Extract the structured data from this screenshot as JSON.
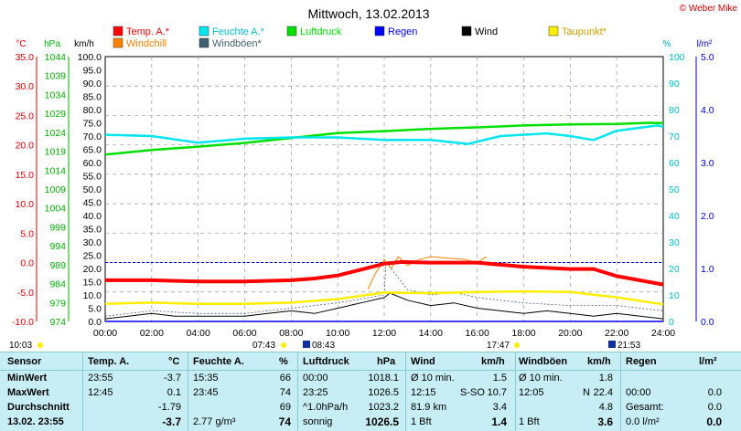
{
  "title": "Mittwoch, 13.02.2013",
  "copyright": "© Weber Mike",
  "legend": [
    {
      "label": "Temp. A.*",
      "color": "#ff0000"
    },
    {
      "label": "Feuchte A.*",
      "color": "#00e5ee"
    },
    {
      "label": "Luftdruck",
      "color": "#00e000"
    },
    {
      "label": "Regen",
      "color": "#0000ff"
    },
    {
      "label": "Wind",
      "color": "#000000"
    },
    {
      "label": "Taupunkt*",
      "color": "#ffee00"
    },
    {
      "label": "Windchill",
      "color": "#ff7f00"
    },
    {
      "label": "Windböen*",
      "color": "#406070"
    }
  ],
  "axis_units": {
    "celsius": "°C",
    "hpa": "hPa",
    "kmh": "km/h",
    "percent": "%",
    "rain": "l/m²"
  },
  "sun_events": {
    "sunrise_label": "07:43",
    "sunset_label": "17:47",
    "moonrise_label": "08:43",
    "moonset_label": "21:53",
    "left_time": "10:03"
  },
  "chart_data": {
    "type": "line",
    "x_range": [
      "00:00",
      "24:00"
    ],
    "x_ticks": [
      "00:00",
      "02:00",
      "04:00",
      "06:00",
      "08:00",
      "10:00",
      "12:00",
      "14:00",
      "16:00",
      "18:00",
      "20:00",
      "22:00",
      "24:00"
    ],
    "axes": {
      "temp_c": {
        "range": [
          -10,
          35
        ],
        "ticks": [
          "35.0",
          "30.0",
          "25.0",
          "20.0",
          "15.0",
          "10.0",
          "5.0",
          "0.0",
          "-5.0",
          "-10.0"
        ]
      },
      "pressure_hpa": {
        "range": [
          974,
          1044
        ],
        "ticks": [
          "1044",
          "1039",
          "1034",
          "1029",
          "1024",
          "1019",
          "1014",
          "1009",
          "1004",
          "999",
          "994",
          "989",
          "984",
          "979",
          "974"
        ]
      },
      "wind_kmh": {
        "range": [
          0,
          100
        ],
        "ticks": [
          "100.0",
          "95.0",
          "90.0",
          "85.0",
          "80.0",
          "75.0",
          "70.0",
          "65.0",
          "60.0",
          "55.0",
          "50.0",
          "45.0",
          "40.0",
          "35.0",
          "30.0",
          "25.0",
          "20.0",
          "15.0",
          "10.0",
          "5.0",
          "0.0"
        ]
      },
      "humidity_pct": {
        "range": [
          0,
          100
        ],
        "ticks": [
          "100",
          "90",
          "80",
          "70",
          "60",
          "50",
          "40",
          "30",
          "20",
          "10",
          "0"
        ]
      },
      "rain_lm2": {
        "range": [
          0,
          5
        ],
        "ticks": [
          "5.0",
          "4.0",
          "3.0",
          "2.0",
          "1.0",
          "0.0"
        ]
      }
    },
    "series": [
      {
        "name": "Temp. A.*",
        "axis": "temp_c",
        "color": "#ff0000",
        "x": [
          0,
          2,
          4,
          6,
          8,
          9,
          10,
          11,
          12,
          12.75,
          14,
          16,
          18,
          20,
          21,
          22,
          23.95,
          24
        ],
        "y": [
          -3.0,
          -3.0,
          -3.2,
          -3.2,
          -3.0,
          -2.7,
          -2.2,
          -1.2,
          -0.2,
          0.1,
          0.0,
          0.0,
          -0.7,
          -1.1,
          -1.1,
          -2.3,
          -3.7,
          -3.7
        ]
      },
      {
        "name": "Feuchte A.*",
        "axis": "humidity_pct",
        "color": "#00e5ee",
        "x": [
          0,
          2,
          4,
          6,
          8,
          10,
          12,
          14,
          15.6,
          17,
          19,
          20,
          21,
          22,
          23.75,
          24
        ],
        "y": [
          70.5,
          70,
          67.5,
          69,
          69.5,
          69.5,
          68.5,
          68.5,
          67,
          70,
          71,
          70,
          68.5,
          72,
          74,
          73.5
        ],
        "label_min": 66,
        "label_max": 74
      },
      {
        "name": "Luftdruck",
        "axis": "pressure_hpa",
        "color": "#00e000",
        "x": [
          0,
          2,
          4,
          6,
          8,
          10,
          12,
          14,
          16,
          18,
          20,
          22,
          23.42,
          24
        ],
        "y": [
          1018.1,
          1019.3,
          1020.2,
          1021.2,
          1022.5,
          1023.8,
          1024.3,
          1024.9,
          1025.3,
          1025.8,
          1026.1,
          1026.2,
          1026.5,
          1026.4
        ]
      },
      {
        "name": "Wind",
        "axis": "wind_kmh",
        "color": "#000000",
        "x": [
          0,
          1,
          2,
          3,
          4,
          5,
          6,
          7,
          8,
          9,
          10,
          11,
          12,
          12.25,
          13,
          14,
          15,
          16,
          17,
          18,
          19,
          20,
          21,
          22,
          23,
          24
        ],
        "y": [
          1,
          2,
          3,
          2,
          2,
          2,
          2,
          3,
          4,
          3,
          5,
          7,
          9,
          10.7,
          8,
          6,
          7,
          5,
          4,
          3,
          4,
          3,
          2,
          3,
          2,
          1
        ]
      },
      {
        "name": "Windböen*",
        "axis": "wind_kmh",
        "color": "#406070",
        "x": [
          0,
          2,
          4,
          6,
          8,
          10,
          12,
          12.08,
          13,
          14,
          15,
          16,
          18,
          20,
          22,
          24
        ],
        "y": [
          2,
          4,
          3,
          3,
          5,
          7,
          10,
          22.4,
          12,
          10,
          11,
          9,
          7,
          6,
          6,
          4
        ]
      },
      {
        "name": "Taupunkt*",
        "axis": "temp_c",
        "color": "#ffee00",
        "x": [
          0,
          2,
          4,
          6,
          8,
          10,
          12,
          14,
          16,
          18,
          20,
          22,
          24
        ],
        "y": [
          -7.0,
          -6.8,
          -7.0,
          -7.0,
          -6.8,
          -6.2,
          -5.1,
          -5.2,
          -5.0,
          -4.9,
          -5.0,
          -5.9,
          -7.1
        ]
      },
      {
        "name": "Windchill",
        "axis": "temp_c",
        "color": "#ff7f00",
        "x": [
          11.3,
          11.6,
          12,
          12.3,
          12.6,
          13,
          13.5,
          14,
          15.5,
          16,
          16.4
        ],
        "y": [
          -4.5,
          -2.0,
          0.5,
          -1.0,
          1.0,
          -0.5,
          0.5,
          1.0,
          0.5,
          0.0,
          1.0
        ]
      },
      {
        "name": "Regen",
        "axis": "rain_lm2",
        "color": "#0000ff",
        "x": [
          0,
          24
        ],
        "y": [
          0,
          0
        ]
      }
    ]
  },
  "table": {
    "header": {
      "sensor": "Sensor",
      "temp": "Temp. A.",
      "temp_unit": "°C",
      "hum": "Feuchte A.",
      "hum_unit": "%",
      "press": "Luftdruck",
      "press_unit": "hPa",
      "wind": "Wind",
      "wind_unit": "km/h",
      "gust": "Windböen",
      "gust_unit": "km/h",
      "rain": "Regen",
      "rain_unit": "l/m²"
    },
    "rows": [
      {
        "label": "MinWert",
        "temp_time": "23:55",
        "temp_val": "-3.7",
        "hum_time": "15:35",
        "hum_val": "66",
        "press_time": "00:00",
        "press_val": "1018.1",
        "wind_time": "Ø 10 min.",
        "wind_val": "1.5",
        "gust_time": "Ø 10 min.",
        "gust_val": "1.8",
        "rain_time": "",
        "rain_val": ""
      },
      {
        "label": "MaxWert",
        "temp_time": "12:45",
        "temp_val": "0.1",
        "hum_time": "23:45",
        "hum_val": "74",
        "press_time": "23:25",
        "press_val": "1026.5",
        "wind_time": "12:15",
        "wind_dir": "S-SO",
        "wind_val": "10.7",
        "gust_time": "12:05",
        "gust_dir": "N",
        "gust_val": "22.4",
        "rain_time": "00:00",
        "rain_val": "0.0"
      },
      {
        "label": "Durchschnitt",
        "temp_time": "",
        "temp_val": "-1.79",
        "hum_time": "",
        "hum_val": "69",
        "press_time": "^1.0hPa/h",
        "press_val": "1023.2",
        "wind_time": "81.9 km",
        "wind_val": "3.4",
        "gust_time": "",
        "gust_val": "4.8",
        "rain_time": "Gesamt:",
        "rain_val": "0.0"
      },
      {
        "label": "13.02. 23:55",
        "temp_time": "",
        "temp_val": "-3.7",
        "hum_time": "2.77 g/m³",
        "hum_val": "74",
        "press_time": "sonnig",
        "press_val": "1026.5",
        "wind_time": "1 Bft",
        "wind_val": "1.4",
        "gust_time": "1 Bft",
        "gust_val": "3.6",
        "rain_time": "0.0 l/m²",
        "rain_val": "0.0"
      }
    ]
  }
}
